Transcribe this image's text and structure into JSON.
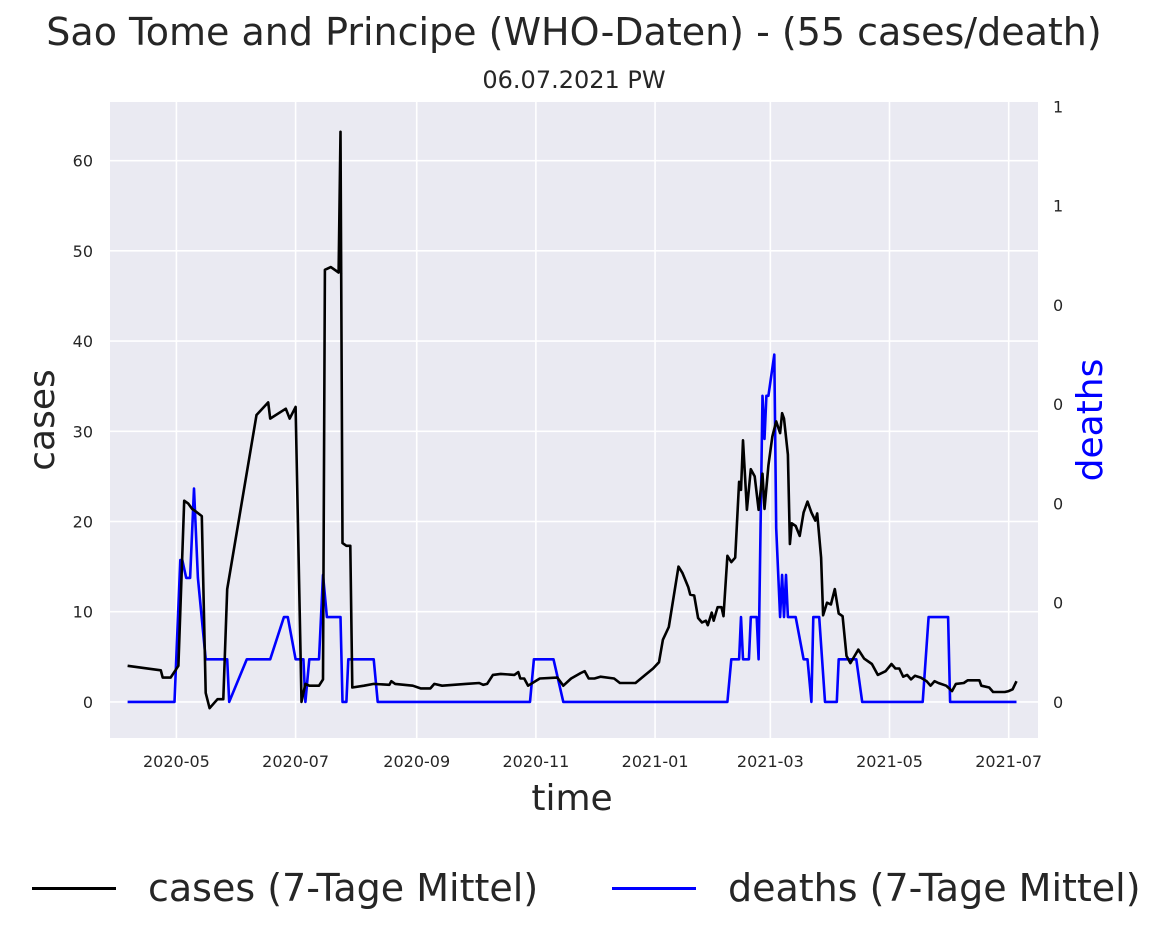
{
  "chart_data": {
    "type": "line",
    "title": "Sao Tome and Principe (WHO-Daten) - (55 cases/death)",
    "subtitle": "06.07.2021 PW",
    "xlabel": "time",
    "ylabel": "cases",
    "y2label": "deaths",
    "x_ticks": [
      "2020-05",
      "2020-07",
      "2020-09",
      "2020-11",
      "2021-01",
      "2021-03",
      "2021-05",
      "2021-07"
    ],
    "y_ticks": [
      0,
      10,
      20,
      30,
      40,
      50,
      60
    ],
    "y2_ticks": [
      "0",
      "0",
      "0",
      "0",
      "0",
      "1",
      "1"
    ],
    "xlim": [
      "2020-03-28",
      "2021-07-16"
    ],
    "ylim": [
      -4,
      66.5
    ],
    "y2lim": [
      -0.0727,
      1.209
    ],
    "grid": true,
    "legend_position": "bottom",
    "series": [
      {
        "name": "cases (7-Tage Mittel)",
        "color": "#000000",
        "axis": "left",
        "points": [
          [
            "2020-04-06",
            4.0
          ],
          [
            "2020-04-23",
            3.5
          ],
          [
            "2020-04-24",
            2.7
          ],
          [
            "2020-04-28",
            2.7
          ],
          [
            "2020-05-02",
            4.0
          ],
          [
            "2020-05-05",
            22.3
          ],
          [
            "2020-05-07",
            22.0
          ],
          [
            "2020-05-09",
            21.4
          ],
          [
            "2020-05-11",
            21.1
          ],
          [
            "2020-05-14",
            20.6
          ],
          [
            "2020-05-16",
            1.0
          ],
          [
            "2020-05-18",
            -0.7
          ],
          [
            "2020-05-22",
            0.3
          ],
          [
            "2020-05-25",
            0.3
          ],
          [
            "2020-05-27",
            12.5
          ],
          [
            "2020-06-11",
            31.8
          ],
          [
            "2020-06-17",
            33.2
          ],
          [
            "2020-06-18",
            31.4
          ],
          [
            "2020-06-26",
            32.5
          ],
          [
            "2020-06-28",
            31.4
          ],
          [
            "2020-07-01",
            32.7
          ],
          [
            "2020-07-04",
            0.0
          ],
          [
            "2020-07-06",
            2.0
          ],
          [
            "2020-07-08",
            1.8
          ],
          [
            "2020-07-13",
            1.8
          ],
          [
            "2020-07-15",
            2.5
          ],
          [
            "2020-07-16",
            47.9
          ],
          [
            "2020-07-19",
            48.2
          ],
          [
            "2020-07-23",
            47.6
          ],
          [
            "2020-07-24",
            63.2
          ],
          [
            "2020-07-25",
            17.6
          ],
          [
            "2020-07-27",
            17.3
          ],
          [
            "2020-07-29",
            17.3
          ],
          [
            "2020-07-30",
            1.6
          ],
          [
            "2020-08-05",
            1.8
          ],
          [
            "2020-08-10",
            2.0
          ],
          [
            "2020-08-18",
            1.9
          ],
          [
            "2020-08-19",
            2.3
          ],
          [
            "2020-08-21",
            2.0
          ],
          [
            "2020-08-30",
            1.8
          ],
          [
            "2020-09-03",
            1.5
          ],
          [
            "2020-09-08",
            1.5
          ],
          [
            "2020-09-10",
            2.0
          ],
          [
            "2020-09-14",
            1.8
          ],
          [
            "2020-09-26",
            2.0
          ],
          [
            "2020-10-03",
            2.1
          ],
          [
            "2020-10-05",
            1.9
          ],
          [
            "2020-10-07",
            2.0
          ],
          [
            "2020-10-10",
            3.0
          ],
          [
            "2020-10-14",
            3.1
          ],
          [
            "2020-10-21",
            3.0
          ],
          [
            "2020-10-23",
            3.3
          ],
          [
            "2020-10-24",
            2.6
          ],
          [
            "2020-10-26",
            2.6
          ],
          [
            "2020-10-28",
            1.8
          ],
          [
            "2020-11-03",
            2.6
          ],
          [
            "2020-11-12",
            2.7
          ],
          [
            "2020-11-15",
            1.8
          ],
          [
            "2020-11-19",
            2.6
          ],
          [
            "2020-11-24",
            3.2
          ],
          [
            "2020-11-26",
            3.4
          ],
          [
            "2020-11-28",
            2.6
          ],
          [
            "2020-12-01",
            2.6
          ],
          [
            "2020-12-04",
            2.8
          ],
          [
            "2020-12-11",
            2.6
          ],
          [
            "2020-12-14",
            2.1
          ],
          [
            "2020-12-22",
            2.1
          ],
          [
            "2020-12-27",
            3.0
          ],
          [
            "2020-12-31",
            3.7
          ],
          [
            "2021-01-03",
            4.4
          ],
          [
            "2021-01-05",
            6.9
          ],
          [
            "2021-01-08",
            8.3
          ],
          [
            "2021-01-13",
            15.0
          ],
          [
            "2021-01-15",
            14.3
          ],
          [
            "2021-01-18",
            12.7
          ],
          [
            "2021-01-19",
            11.9
          ],
          [
            "2021-01-21",
            11.8
          ],
          [
            "2021-01-23",
            9.3
          ],
          [
            "2021-01-25",
            8.8
          ],
          [
            "2021-01-27",
            9.0
          ],
          [
            "2021-01-28",
            8.5
          ],
          [
            "2021-01-30",
            9.9
          ],
          [
            "2021-01-31",
            9.0
          ],
          [
            "2021-02-02",
            10.5
          ],
          [
            "2021-02-04",
            10.5
          ],
          [
            "2021-02-05",
            9.5
          ],
          [
            "2021-02-07",
            16.2
          ],
          [
            "2021-02-09",
            15.5
          ],
          [
            "2021-02-11",
            16.0
          ],
          [
            "2021-02-13",
            24.4
          ],
          [
            "2021-02-14",
            23.5
          ],
          [
            "2021-02-15",
            29.0
          ],
          [
            "2021-02-17",
            21.3
          ],
          [
            "2021-02-19",
            25.8
          ],
          [
            "2021-02-21",
            25.0
          ],
          [
            "2021-02-23",
            21.3
          ],
          [
            "2021-02-25",
            25.3
          ],
          [
            "2021-02-26",
            21.4
          ],
          [
            "2021-02-28",
            26.2
          ],
          [
            "2021-03-02",
            29.4
          ],
          [
            "2021-03-04",
            31.1
          ],
          [
            "2021-03-06",
            29.8
          ],
          [
            "2021-03-07",
            32.0
          ],
          [
            "2021-03-08",
            31.4
          ],
          [
            "2021-03-10",
            27.4
          ],
          [
            "2021-03-11",
            17.5
          ],
          [
            "2021-03-12",
            19.8
          ],
          [
            "2021-03-14",
            19.5
          ],
          [
            "2021-03-16",
            18.4
          ],
          [
            "2021-03-18",
            21.0
          ],
          [
            "2021-03-20",
            22.2
          ],
          [
            "2021-03-22",
            21.0
          ],
          [
            "2021-03-24",
            20.1
          ],
          [
            "2021-03-25",
            20.9
          ],
          [
            "2021-03-27",
            16.0
          ],
          [
            "2021-03-28",
            9.6
          ],
          [
            "2021-03-30",
            11.0
          ],
          [
            "2021-04-01",
            10.8
          ],
          [
            "2021-04-03",
            12.5
          ],
          [
            "2021-04-05",
            9.8
          ],
          [
            "2021-04-07",
            9.5
          ],
          [
            "2021-04-09",
            5.1
          ],
          [
            "2021-04-11",
            4.3
          ],
          [
            "2021-04-15",
            5.8
          ],
          [
            "2021-04-18",
            4.8
          ],
          [
            "2021-04-22",
            4.2
          ],
          [
            "2021-04-25",
            3.0
          ],
          [
            "2021-04-29",
            3.4
          ],
          [
            "2021-05-02",
            4.2
          ],
          [
            "2021-05-04",
            3.7
          ],
          [
            "2021-05-06",
            3.7
          ],
          [
            "2021-05-08",
            2.8
          ],
          [
            "2021-05-10",
            3.0
          ],
          [
            "2021-05-12",
            2.5
          ],
          [
            "2021-05-14",
            2.9
          ],
          [
            "2021-05-17",
            2.7
          ],
          [
            "2021-05-20",
            2.3
          ],
          [
            "2021-05-22",
            1.8
          ],
          [
            "2021-05-24",
            2.3
          ],
          [
            "2021-05-26",
            2.1
          ],
          [
            "2021-05-30",
            1.8
          ],
          [
            "2021-06-02",
            1.2
          ],
          [
            "2021-06-04",
            2.0
          ],
          [
            "2021-06-08",
            2.1
          ],
          [
            "2021-06-10",
            2.4
          ],
          [
            "2021-06-16",
            2.4
          ],
          [
            "2021-06-17",
            1.8
          ],
          [
            "2021-06-21",
            1.6
          ],
          [
            "2021-06-23",
            1.1
          ],
          [
            "2021-06-29",
            1.1
          ],
          [
            "2021-07-01",
            1.2
          ],
          [
            "2021-07-03",
            1.4
          ],
          [
            "2021-07-05",
            2.3
          ]
        ]
      },
      {
        "name": "deaths (7-Tage Mittel)",
        "color": "#0000ff",
        "axis": "right",
        "points": [
          [
            "2020-04-06",
            0.0
          ],
          [
            "2020-04-30",
            0.0
          ],
          [
            "2020-05-03",
            0.286
          ],
          [
            "2020-05-04",
            0.286
          ],
          [
            "2020-05-06",
            0.25
          ],
          [
            "2020-05-08",
            0.25
          ],
          [
            "2020-05-10",
            0.43
          ],
          [
            "2020-05-12",
            0.25
          ],
          [
            "2020-05-16",
            0.086
          ],
          [
            "2020-05-27",
            0.086
          ],
          [
            "2020-05-28",
            0.0
          ],
          [
            "2020-06-06",
            0.086
          ],
          [
            "2020-06-10",
            0.086
          ],
          [
            "2020-06-18",
            0.086
          ],
          [
            "2020-06-25",
            0.171
          ],
          [
            "2020-06-27",
            0.171
          ],
          [
            "2020-07-01",
            0.086
          ],
          [
            "2020-07-05",
            0.086
          ],
          [
            "2020-07-06",
            0.0
          ],
          [
            "2020-07-08",
            0.086
          ],
          [
            "2020-07-13",
            0.086
          ],
          [
            "2020-07-15",
            0.256
          ],
          [
            "2020-07-17",
            0.171
          ],
          [
            "2020-07-24",
            0.171
          ],
          [
            "2020-07-25",
            0.0
          ],
          [
            "2020-07-27",
            0.0
          ],
          [
            "2020-07-28",
            0.086
          ],
          [
            "2020-08-10",
            0.086
          ],
          [
            "2020-08-12",
            0.0
          ],
          [
            "2020-10-29",
            0.0
          ],
          [
            "2020-10-31",
            0.086
          ],
          [
            "2020-11-10",
            0.086
          ],
          [
            "2020-11-15",
            0.0
          ],
          [
            "2021-02-07",
            0.0
          ],
          [
            "2021-02-09",
            0.086
          ],
          [
            "2021-02-13",
            0.086
          ],
          [
            "2021-02-14",
            0.171
          ],
          [
            "2021-02-15",
            0.086
          ],
          [
            "2021-02-18",
            0.086
          ],
          [
            "2021-02-19",
            0.171
          ],
          [
            "2021-02-22",
            0.171
          ],
          [
            "2021-02-23",
            0.086
          ],
          [
            "2021-02-25",
            0.617
          ],
          [
            "2021-02-26",
            0.53
          ],
          [
            "2021-02-27",
            0.617
          ],
          [
            "2021-02-28",
            0.617
          ],
          [
            "2021-03-03",
            0.7
          ],
          [
            "2021-03-04",
            0.35
          ],
          [
            "2021-03-06",
            0.171
          ],
          [
            "2021-03-07",
            0.256
          ],
          [
            "2021-03-08",
            0.171
          ],
          [
            "2021-03-09",
            0.256
          ],
          [
            "2021-03-10",
            0.171
          ],
          [
            "2021-03-14",
            0.171
          ],
          [
            "2021-03-18",
            0.086
          ],
          [
            "2021-03-20",
            0.086
          ],
          [
            "2021-03-22",
            0.0
          ],
          [
            "2021-03-23",
            0.171
          ],
          [
            "2021-03-26",
            0.171
          ],
          [
            "2021-03-29",
            0.0
          ],
          [
            "2021-04-04",
            0.0
          ],
          [
            "2021-04-05",
            0.086
          ],
          [
            "2021-04-14",
            0.086
          ],
          [
            "2021-04-17",
            0.0
          ],
          [
            "2021-05-18",
            0.0
          ],
          [
            "2021-05-21",
            0.171
          ],
          [
            "2021-05-31",
            0.171
          ],
          [
            "2021-06-01",
            0.0
          ],
          [
            "2021-07-05",
            0.0
          ]
        ]
      }
    ]
  }
}
